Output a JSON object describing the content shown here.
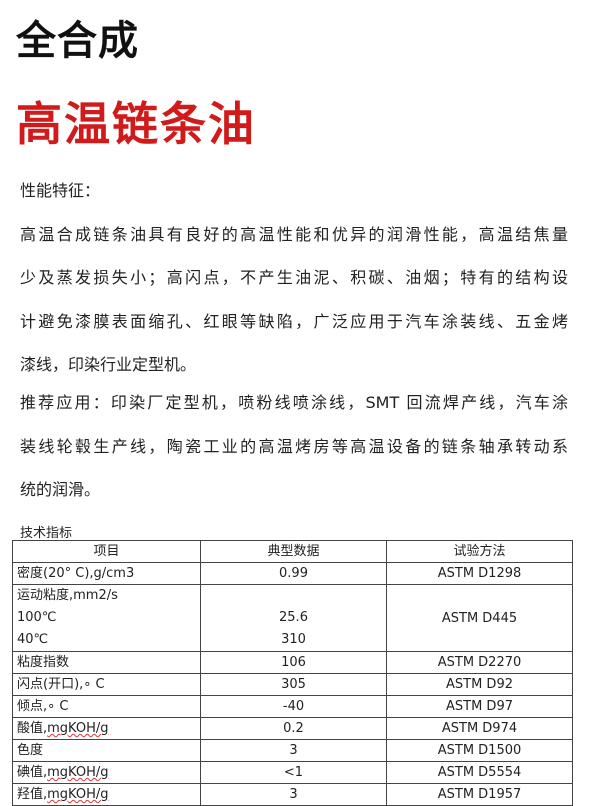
{
  "title_line1": "全合成",
  "title_line2": "高温链条油",
  "features_heading": "性能特征：",
  "features_lines": [
    "高温合成链条油具有良好的高温性能和优异的润滑性能，高温结焦量",
    "少及蒸发损失小；高闪点，不产生油泥、积碳、油烟；特有的结构设",
    "计避免漆膜表面缩孔、红眼等缺陷，广泛应用于汽车涂装线、五金烤",
    "漆线，印染行业定型机。"
  ],
  "application_lines": [
    "推荐应用：印染厂定型机，喷粉线喷涂线，SMT 回流焊产线，汽车涂",
    "装线轮毂生产线，陶瓷工业的高温烤房等高温设备的链条轴承转动系",
    "统的润滑。"
  ],
  "table_caption": "技术指标",
  "table": {
    "headers": [
      "项目",
      "典型数据",
      "试验方法"
    ],
    "rows": [
      {
        "item": "密度(20° C),g/cm3",
        "value": "0.99",
        "method": "ASTM D1298"
      },
      {
        "item": "运动粘度,mm2/s",
        "sub": [
          "100℃",
          "40℃"
        ],
        "sub_values": [
          "25.6",
          "310"
        ],
        "method": "ASTM D445"
      },
      {
        "item": "粘度指数",
        "value": "106",
        "method": "ASTM D2270"
      },
      {
        "item": "闪点(开口),∘ C",
        "value": "305",
        "method": "ASTM D92"
      },
      {
        "item": "倾点,∘ C",
        "value": "-40",
        "method": "ASTM D97"
      },
      {
        "item_cn": "酸值,",
        "item_unit": "mgKOH/g",
        "value": "0.2",
        "method": "ASTM D974"
      },
      {
        "item": "色度",
        "value": "3",
        "method": "ASTM D1500"
      },
      {
        "item_cn": "碘值,",
        "item_unit": "mgKOH/g",
        "value": "<1",
        "method": "ASTM D5554"
      },
      {
        "item_cn": "羟值,",
        "item_unit": "mgKOH/g",
        "value": "3",
        "method": "ASTM D1957"
      }
    ]
  }
}
